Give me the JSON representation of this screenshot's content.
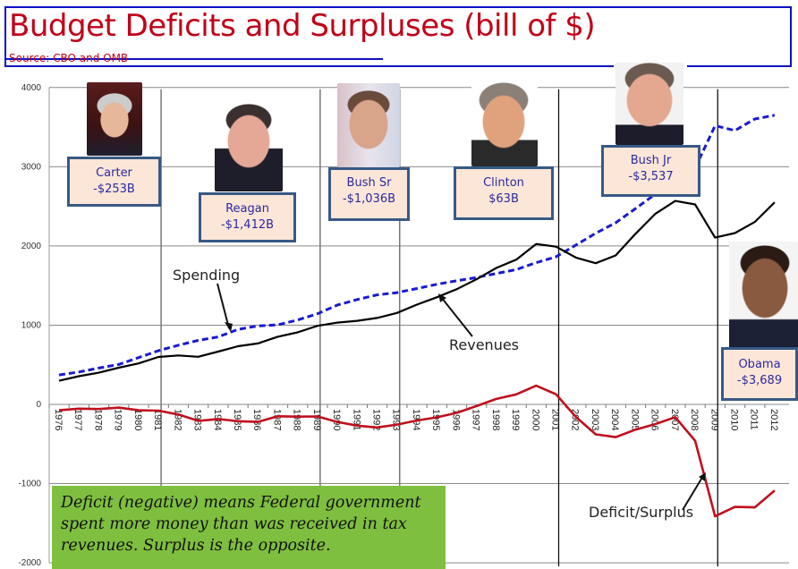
{
  "header": {
    "title": "Budget Deficits and Surpluses (bill of $)",
    "source": "Source: CBO and OMB"
  },
  "colors": {
    "title": "#c00018",
    "spending": "#1a1ad0",
    "revenues": "#000000",
    "deficit": "#c0101e",
    "note_bg": "#7fbf3f",
    "box_bg": "#fce6d8",
    "box_border": "#375a85",
    "box_text": "#2a2a9c"
  },
  "presidents": [
    {
      "name": "Carter",
      "value": "-$253B"
    },
    {
      "name": "Reagan",
      "value": "-$1,412B"
    },
    {
      "name": "Bush Sr",
      "value": "-$1,036B"
    },
    {
      "name": "Clinton",
      "value": "$63B"
    },
    {
      "name": "Bush Jr",
      "value": "-$3,537"
    },
    {
      "name": "Obama",
      "value": "-$3,689"
    }
  ],
  "note": "Deficit (negative) means Federal government spent more money than was received in tax revenues. Surplus is the opposite.",
  "chart_data": {
    "type": "line",
    "title": "Budget Deficits and Surpluses (bill of $)",
    "xlabel": "",
    "ylabel": "",
    "ylim": [
      -2000,
      4000
    ],
    "yticks": [
      "4000",
      "3000",
      "2000",
      "1000",
      "0",
      "-1000",
      "-2000"
    ],
    "grid": true,
    "x": [
      "1976",
      "1977",
      "1978",
      "1979",
      "1980",
      "1981",
      "1982",
      "1983",
      "1984",
      "1985",
      "1986",
      "1987",
      "1988",
      "1989",
      "1990",
      "1991",
      "1992",
      "1993",
      "1994",
      "1995",
      "1996",
      "1997",
      "1998",
      "1999",
      "2000",
      "2001",
      "2002",
      "2003",
      "2004",
      "2005",
      "2006",
      "2007",
      "2008",
      "2009",
      "2010",
      "2011",
      "2012"
    ],
    "series": [
      {
        "name": "Spending",
        "style": "dashed",
        "values": [
          372,
          409,
          459,
          504,
          591,
          678,
          746,
          808,
          852,
          946,
          990,
          1004,
          1065,
          1144,
          1253,
          1324,
          1382,
          1410,
          1462,
          1516,
          1561,
          1601,
          1652,
          1702,
          1789,
          1863,
          2011,
          2160,
          2293,
          2472,
          2655,
          2729,
          2983,
          3518,
          3457,
          3603,
          3650
        ]
      },
      {
        "name": "Revenues",
        "style": "solid",
        "values": [
          298,
          356,
          400,
          463,
          517,
          599,
          618,
          601,
          666,
          734,
          769,
          854,
          909,
          991,
          1032,
          1055,
          1091,
          1154,
          1259,
          1352,
          1453,
          1579,
          1722,
          1827,
          2025,
          1991,
          1853,
          1782,
          1880,
          2154,
          2407,
          2568,
          2524,
          2105,
          2163,
          2303,
          2550
        ]
      },
      {
        "name": "Deficit/Surplus",
        "style": "solid",
        "values": [
          -74,
          -54,
          -59,
          -41,
          -74,
          -79,
          -128,
          -208,
          -185,
          -212,
          -221,
          -150,
          -155,
          -153,
          -221,
          -269,
          -291,
          -255,
          -203,
          -164,
          -107,
          -22,
          69,
          126,
          236,
          128,
          -158,
          -378,
          -413,
          -318,
          -248,
          -161,
          -459,
          -1413,
          -1294,
          -1300,
          -1087
        ]
      }
    ],
    "annotations": [
      "Spending",
      "Revenues",
      "Deficit/Surplus"
    ],
    "dividers": [
      "1981",
      "1989",
      "1993",
      "2001",
      "2009"
    ]
  }
}
